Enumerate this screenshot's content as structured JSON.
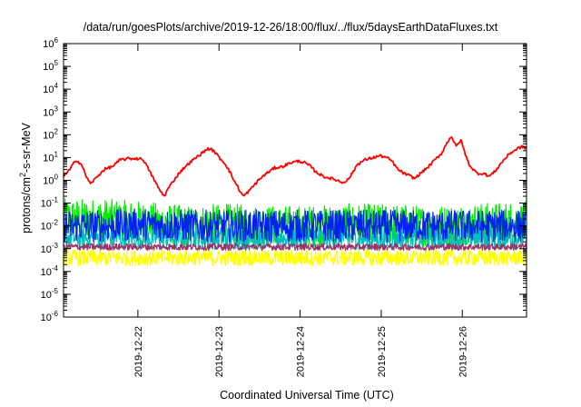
{
  "chart_data": {
    "type": "line",
    "title": "/data/run/goesPlots/archive/2019-12-26/18:00/flux/../flux/5daysEarthDataFluxes.txt",
    "xlabel": "Coordinated Universal Time (UTC)",
    "ylabel_parts": [
      "protons/cm",
      "2",
      "-s-sr-MeV"
    ],
    "y_scale": "log",
    "ylim": [
      1e-06,
      1000000.0
    ],
    "x_range_days": [
      "2019-12-21T02:00",
      "2019-12-26T19:00"
    ],
    "y_ticks": [
      {
        "exp": "-6",
        "value": 1e-06
      },
      {
        "exp": "-5",
        "value": 1e-05
      },
      {
        "exp": "-4",
        "value": 0.0001
      },
      {
        "exp": "-3",
        "value": 0.001
      },
      {
        "exp": "-2",
        "value": 0.01
      },
      {
        "exp": "-1",
        "value": 0.1
      },
      {
        "exp": "0",
        "value": 1
      },
      {
        "exp": "1",
        "value": 10.0
      },
      {
        "exp": "2",
        "value": 100.0
      },
      {
        "exp": "3",
        "value": 1000.0
      },
      {
        "exp": "4",
        "value": 10000.0
      },
      {
        "exp": "5",
        "value": 100000.0
      },
      {
        "exp": "6",
        "value": 1000000.0
      }
    ],
    "x_ticks": [
      "2019-12-22",
      "2019-12-23",
      "2019-12-24",
      "2019-12-25",
      "2019-12-26"
    ],
    "grid": false,
    "legend": "none",
    "series": [
      {
        "color": "#00ee00",
        "noisy": true,
        "center": [
          0.008,
          0.035
        ],
        "spread": 0.9,
        "values": [
          [
            0.0,
            0.02
          ],
          [
            0.5,
            0.02
          ],
          [
            1.0,
            0.015
          ],
          [
            1.5,
            0.01
          ],
          [
            2.0,
            0.012
          ],
          [
            2.5,
            0.01
          ],
          [
            3.0,
            0.01
          ],
          [
            3.5,
            0.012
          ],
          [
            4.0,
            0.012
          ],
          [
            4.5,
            0.01
          ],
          [
            5.0,
            0.012
          ],
          [
            5.5,
            0.015
          ],
          [
            5.708,
            0.015
          ]
        ]
      },
      {
        "color": "#00bbbb",
        "noisy": true,
        "center": [
          0.003
        ],
        "spread": 0.5,
        "values": [
          [
            0.0,
            0.003
          ],
          [
            0.5,
            0.003
          ],
          [
            1.0,
            0.003
          ],
          [
            1.5,
            0.003
          ],
          [
            2.0,
            0.003
          ],
          [
            2.5,
            0.003
          ],
          [
            3.0,
            0.003
          ],
          [
            3.5,
            0.003
          ],
          [
            4.0,
            0.003
          ],
          [
            4.5,
            0.003
          ],
          [
            5.0,
            0.003
          ],
          [
            5.5,
            0.003
          ],
          [
            5.708,
            0.003
          ]
        ]
      },
      {
        "color": "#0022ee",
        "noisy": true,
        "center": [
          0.01
        ],
        "spread": 0.7,
        "values": [
          [
            0.0,
            0.01
          ],
          [
            0.5,
            0.01
          ],
          [
            1.0,
            0.012
          ],
          [
            1.5,
            0.01
          ],
          [
            2.0,
            0.01
          ],
          [
            2.5,
            0.01
          ],
          [
            3.0,
            0.01
          ],
          [
            3.5,
            0.01
          ],
          [
            4.0,
            0.01
          ],
          [
            4.5,
            0.01
          ],
          [
            5.0,
            0.01
          ],
          [
            5.5,
            0.01
          ],
          [
            5.708,
            0.01
          ]
        ]
      },
      {
        "color": "#ffff00",
        "noisy": true,
        "center": [
          0.0004
        ],
        "spread": 0.35,
        "values": [
          [
            0.0,
            0.0004
          ],
          [
            0.5,
            0.0004
          ],
          [
            1.0,
            0.0004
          ],
          [
            1.5,
            0.0004
          ],
          [
            2.0,
            0.0004
          ],
          [
            2.5,
            0.0004
          ],
          [
            3.0,
            0.0004
          ],
          [
            3.5,
            0.0004
          ],
          [
            4.0,
            0.0004
          ],
          [
            4.5,
            0.0004
          ],
          [
            5.0,
            0.0004
          ],
          [
            5.5,
            0.0004
          ],
          [
            5.708,
            0.0004
          ]
        ]
      },
      {
        "color": "#993366",
        "noisy": true,
        "center": [
          0.0012
        ],
        "spread": 0.15,
        "values": [
          [
            0.0,
            0.0012
          ],
          [
            0.5,
            0.0012
          ],
          [
            1.0,
            0.0012
          ],
          [
            1.5,
            0.0012
          ],
          [
            2.0,
            0.0012
          ],
          [
            2.5,
            0.0012
          ],
          [
            3.0,
            0.0012
          ],
          [
            3.5,
            0.0012
          ],
          [
            4.0,
            0.0012
          ],
          [
            4.5,
            0.0012
          ],
          [
            5.0,
            0.0012
          ],
          [
            5.5,
            0.0012
          ],
          [
            5.708,
            0.0012
          ]
        ]
      },
      {
        "color": "#ff0000",
        "noisy": false,
        "values": [
          [
            0.0,
            1.5
          ],
          [
            0.08,
            3
          ],
          [
            0.15,
            8
          ],
          [
            0.22,
            5
          ],
          [
            0.28,
            1.5
          ],
          [
            0.33,
            0.7
          ],
          [
            0.42,
            1.5
          ],
          [
            0.5,
            3
          ],
          [
            0.6,
            4
          ],
          [
            0.7,
            8
          ],
          [
            0.8,
            9
          ],
          [
            0.9,
            9
          ],
          [
            0.98,
            8.5
          ],
          [
            1.05,
            3
          ],
          [
            1.12,
            1.0
          ],
          [
            1.18,
            0.4
          ],
          [
            1.24,
            0.2
          ],
          [
            1.3,
            0.5
          ],
          [
            1.36,
            1.0
          ],
          [
            1.42,
            2
          ],
          [
            1.5,
            4
          ],
          [
            1.6,
            8
          ],
          [
            1.7,
            15
          ],
          [
            1.78,
            25
          ],
          [
            1.85,
            20
          ],
          [
            1.92,
            10
          ],
          [
            2.0,
            5
          ],
          [
            2.06,
            2
          ],
          [
            2.1,
            1.0
          ],
          [
            2.14,
            0.6
          ],
          [
            2.18,
            0.3
          ],
          [
            2.22,
            0.2
          ],
          [
            2.27,
            0.3
          ],
          [
            2.33,
            0.5
          ],
          [
            2.4,
            1.0
          ],
          [
            2.5,
            2
          ],
          [
            2.6,
            3.5
          ],
          [
            2.7,
            4
          ],
          [
            2.8,
            6
          ],
          [
            2.9,
            7
          ],
          [
            2.97,
            6
          ],
          [
            3.05,
            4
          ],
          [
            3.1,
            2.5
          ],
          [
            3.2,
            1.5
          ],
          [
            3.3,
            1.2
          ],
          [
            3.38,
            1.0
          ],
          [
            3.43,
            0.8
          ],
          [
            3.5,
            1.0
          ],
          [
            3.56,
            2
          ],
          [
            3.62,
            5
          ],
          [
            3.72,
            8
          ],
          [
            3.82,
            10
          ],
          [
            3.9,
            12
          ],
          [
            3.98,
            10
          ],
          [
            4.05,
            7
          ],
          [
            4.12,
            3
          ],
          [
            4.2,
            2
          ],
          [
            4.28,
            1.5
          ],
          [
            4.33,
            1.2
          ],
          [
            4.4,
            2
          ],
          [
            4.5,
            4
          ],
          [
            4.58,
            8
          ],
          [
            4.66,
            15
          ],
          [
            4.72,
            40
          ],
          [
            4.78,
            90
          ],
          [
            4.84,
            30
          ],
          [
            4.9,
            60
          ],
          [
            4.95,
            15
          ],
          [
            5.0,
            5
          ],
          [
            5.05,
            3
          ],
          [
            5.1,
            2
          ],
          [
            5.18,
            2
          ],
          [
            5.25,
            1.5
          ],
          [
            5.32,
            2.5
          ],
          [
            5.4,
            6
          ],
          [
            5.5,
            15
          ],
          [
            5.6,
            25
          ],
          [
            5.65,
            30
          ],
          [
            5.708,
            25
          ]
        ]
      }
    ]
  }
}
